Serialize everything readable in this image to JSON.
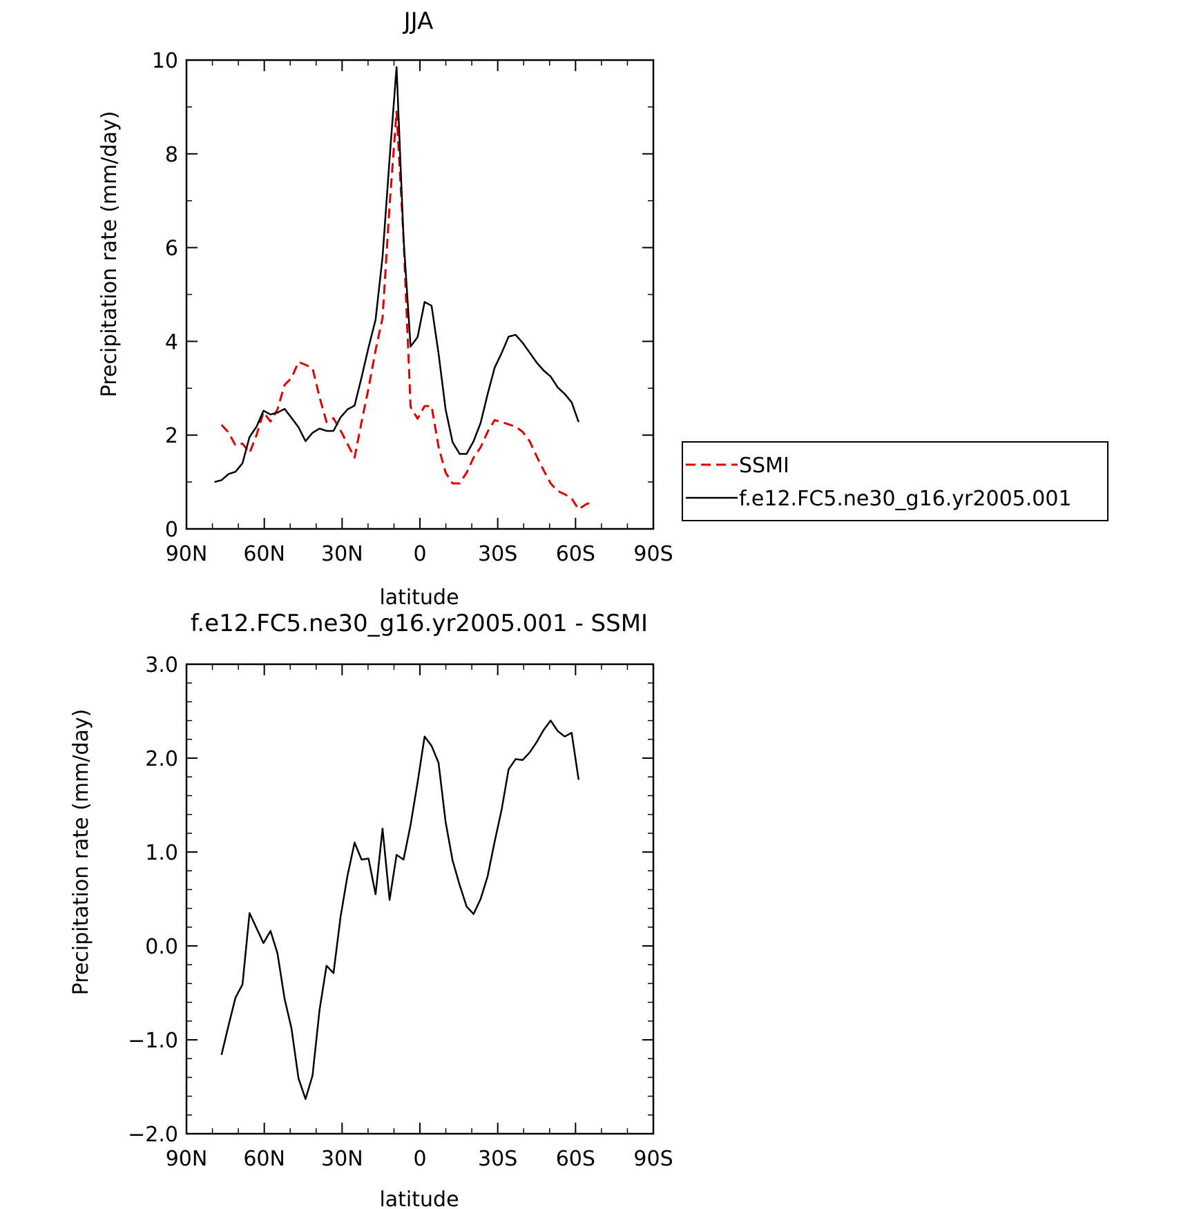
{
  "chart_data": [
    {
      "type": "line",
      "title": "JJA",
      "xlabel": "latitude",
      "ylabel": "Precipitation rate (mm/day)",
      "xlim": [
        90,
        -90
      ],
      "ylim": [
        0,
        10
      ],
      "xticks": [
        {
          "value": 90,
          "label": "90N"
        },
        {
          "value": 60,
          "label": "60N"
        },
        {
          "value": 30,
          "label": "30N"
        },
        {
          "value": 0,
          "label": "0"
        },
        {
          "value": -30,
          "label": "30S"
        },
        {
          "value": -60,
          "label": "60S"
        },
        {
          "value": -90,
          "label": "90S"
        }
      ],
      "yticks": [
        {
          "value": 0,
          "label": "0"
        },
        {
          "value": 2,
          "label": "2"
        },
        {
          "value": 4,
          "label": "4"
        },
        {
          "value": 6,
          "label": "6"
        },
        {
          "value": 8,
          "label": "8"
        },
        {
          "value": 10,
          "label": "10"
        }
      ],
      "grid": false,
      "legend_position": "right",
      "series": [
        {
          "name": "SSMI",
          "color": "#e00000",
          "dash": true,
          "x": [
            76.5,
            73.8,
            71.1,
            68.4,
            65.7,
            63,
            60.3,
            57.6,
            54.9,
            52.2,
            49.5,
            46.8,
            44.1,
            41.4,
            38.7,
            36,
            33.3,
            30.6,
            27.9,
            25.2,
            22.5,
            19.8,
            17.1,
            14.4,
            11.7,
            9,
            6.3,
            3.6,
            0.9,
            -1.8,
            -4.5,
            -7.2,
            -9.9,
            -12.6,
            -15.3,
            -18,
            -20.7,
            -23.4,
            -26.1,
            -28.8,
            -31.5,
            -34.2,
            -36.9,
            -39.6,
            -42.3,
            -45,
            -47.7,
            -50.4,
            -53.1,
            -55.8,
            -58.5,
            -61.2,
            -63.9,
            -66.6
          ],
          "y": [
            2.22,
            2.06,
            1.78,
            1.82,
            1.62,
            2.0,
            2.49,
            2.29,
            2.55,
            3.07,
            3.22,
            3.56,
            3.5,
            3.43,
            2.81,
            2.28,
            2.36,
            2.1,
            1.81,
            1.52,
            2.28,
            3.0,
            3.81,
            4.5,
            6.9,
            8.9,
            6.2,
            2.6,
            2.35,
            2.62,
            2.62,
            1.75,
            1.2,
            0.97,
            0.97,
            1.2,
            1.52,
            1.74,
            2.07,
            2.32,
            2.28,
            2.23,
            2.18,
            2.07,
            1.87,
            1.55,
            1.25,
            0.97,
            0.81,
            0.74,
            0.65,
            0.42,
            0.52,
            0.58
          ]
        },
        {
          "name": "f.e12.FC5.ne30_g16.yr2005.001",
          "color": "#000000",
          "dash": false,
          "x": [
            79.2,
            76.5,
            73.8,
            71.1,
            68.4,
            65.7,
            63,
            60.3,
            57.6,
            54.9,
            52.2,
            49.5,
            46.8,
            44.1,
            41.4,
            38.7,
            36,
            33.3,
            30.6,
            27.9,
            25.2,
            22.5,
            19.8,
            17.1,
            14.4,
            11.7,
            9,
            6.3,
            3.6,
            0.9,
            -1.8,
            -4.5,
            -7.2,
            -9.9,
            -12.6,
            -15.3,
            -18,
            -20.7,
            -23.4,
            -26.1,
            -28.8,
            -31.5,
            -34.2,
            -36.9,
            -39.6,
            -42.3,
            -45,
            -47.7,
            -50.4,
            -53.1,
            -55.8,
            -58.5,
            -61.2,
            -63.9,
            -66.6
          ],
          "y": [
            1.0,
            1.04,
            1.17,
            1.22,
            1.4,
            1.96,
            2.18,
            2.52,
            2.44,
            2.48,
            2.56,
            2.37,
            2.17,
            1.87,
            2.05,
            2.14,
            2.09,
            2.09,
            2.38,
            2.55,
            2.63,
            3.23,
            3.87,
            4.46,
            5.8,
            7.9,
            9.85,
            6.2,
            3.89,
            4.09,
            4.84,
            4.76,
            3.74,
            2.55,
            1.85,
            1.6,
            1.6,
            1.87,
            2.26,
            2.87,
            3.44,
            3.75,
            4.1,
            4.14,
            3.97,
            3.76,
            3.55,
            3.38,
            3.25,
            3.02,
            2.88,
            2.7,
            2.28,
            null,
            null
          ]
        }
      ]
    },
    {
      "type": "line",
      "title": "f.e12.FC5.ne30_g16.yr2005.001 - SSMI",
      "xlabel": "latitude",
      "ylabel": "Precipitation rate (mm/day)",
      "xlim": [
        90,
        -90
      ],
      "ylim": [
        -2.0,
        3.0
      ],
      "xticks": [
        {
          "value": 90,
          "label": "90N"
        },
        {
          "value": 60,
          "label": "60N"
        },
        {
          "value": 30,
          "label": "30N"
        },
        {
          "value": 0,
          "label": "0"
        },
        {
          "value": -30,
          "label": "30S"
        },
        {
          "value": -60,
          "label": "60S"
        },
        {
          "value": -90,
          "label": "90S"
        }
      ],
      "yticks": [
        {
          "value": -2,
          "label": "-2.0"
        },
        {
          "value": -1,
          "label": "-1.0"
        },
        {
          "value": 0,
          "label": "0.0"
        },
        {
          "value": 1,
          "label": "1.0"
        },
        {
          "value": 2,
          "label": "2.0"
        },
        {
          "value": 3,
          "label": "3.0"
        }
      ],
      "grid": false,
      "series": [
        {
          "color": "#000000",
          "dash": false,
          "x": [
            76.5,
            73.8,
            71.1,
            68.4,
            65.7,
            63,
            60.3,
            57.6,
            54.9,
            52.2,
            49.5,
            46.8,
            44.1,
            41.4,
            38.7,
            36,
            33.3,
            30.6,
            27.9,
            25.2,
            22.5,
            19.8,
            17.1,
            14.4,
            11.7,
            9,
            6.3,
            3.6,
            0.9,
            -1.8,
            -4.5,
            -7.2,
            -9.9,
            -12.6,
            -15.3,
            -18,
            -20.7,
            -23.4,
            -26.1,
            -28.8,
            -31.5,
            -34.2,
            -36.9,
            -39.6,
            -42.3,
            -45,
            -47.7,
            -50.4,
            -53.1,
            -55.8,
            -58.5,
            -61.2,
            -63.9,
            -66.6
          ],
          "y": [
            -1.16,
            -0.85,
            -0.55,
            -0.41,
            0.35,
            0.19,
            0.03,
            0.16,
            -0.08,
            -0.56,
            -0.88,
            -1.41,
            -1.63,
            -1.38,
            -0.68,
            -0.21,
            -0.29,
            0.31,
            0.75,
            1.1,
            0.92,
            0.93,
            0.55,
            1.25,
            0.49,
            0.97,
            0.92,
            1.29,
            1.74,
            2.23,
            2.13,
            1.95,
            1.32,
            0.91,
            0.65,
            0.42,
            0.34,
            0.5,
            0.74,
            1.11,
            1.45,
            1.88,
            1.99,
            1.98,
            2.06,
            2.17,
            2.3,
            2.4,
            2.29,
            2.23,
            2.27,
            1.77,
            null,
            null
          ]
        }
      ]
    }
  ]
}
